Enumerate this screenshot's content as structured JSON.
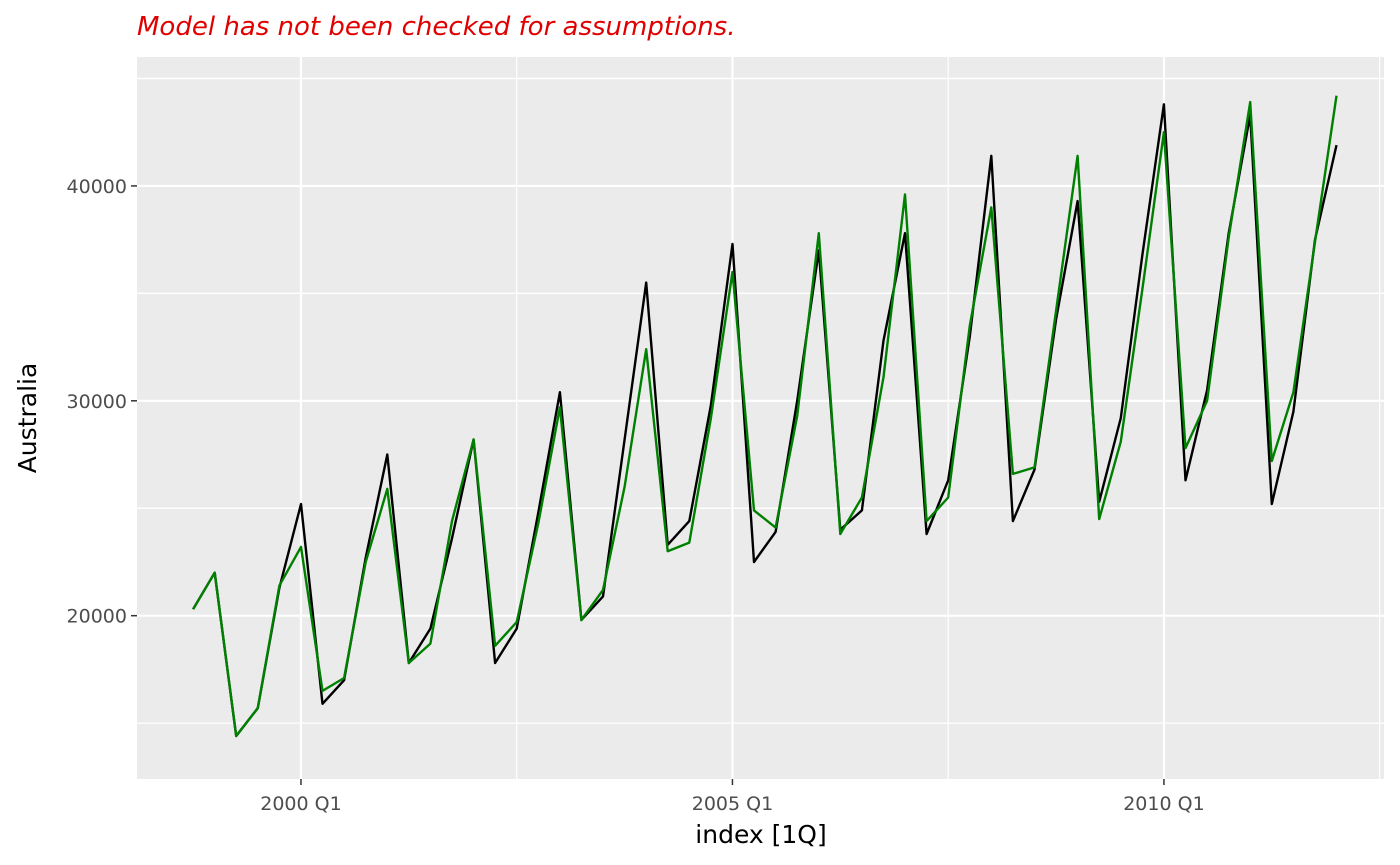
{
  "chart_data": {
    "type": "line",
    "title": "",
    "subtitle": "Model has not been checked for assumptions.",
    "xlabel": "index [1Q]",
    "ylabel": "Australia",
    "x_tick_labels": [
      "2000 Q1",
      "2005 Q1",
      "2010 Q1"
    ],
    "y_tick_labels": [
      "20000",
      "30000",
      "40000"
    ],
    "xlim": [
      1998.1,
      2012.55
    ],
    "ylim": [
      12400,
      46000
    ],
    "grid": true,
    "legend": "none",
    "x": [
      1998.75,
      1999.0,
      1999.25,
      1999.5,
      1999.75,
      2000.0,
      2000.25,
      2000.5,
      2000.75,
      2001.0,
      2001.25,
      2001.5,
      2001.75,
      2002.0,
      2002.25,
      2002.5,
      2002.75,
      2003.0,
      2003.25,
      2003.5,
      2003.75,
      2004.0,
      2004.25,
      2004.5,
      2004.75,
      2005.0,
      2005.25,
      2005.5,
      2005.75,
      2006.0,
      2006.25,
      2006.5,
      2006.75,
      2007.0,
      2007.25,
      2007.5,
      2007.75,
      2008.0,
      2008.25,
      2008.5,
      2008.75,
      2009.0,
      2009.25,
      2009.5,
      2009.75,
      2010.0,
      2010.25,
      2010.5,
      2010.75,
      2011.0,
      2011.25,
      2011.5,
      2011.75
    ],
    "series": [
      {
        "color": "#000000",
        "values": [
          20300,
          22000,
          14400,
          15700,
          21300,
          25200,
          15900,
          17000,
          22700,
          27500,
          17800,
          19400,
          23600,
          28200,
          17800,
          19400,
          24800,
          30400,
          19800,
          20900,
          28200,
          35500,
          23300,
          24400,
          29800,
          37300,
          22500,
          23900,
          30000,
          37000,
          24000,
          24900,
          32800,
          37800,
          23800,
          26300,
          33000,
          41400,
          24400,
          26800,
          33800,
          39300,
          25300,
          29200,
          36800,
          43800,
          26300,
          30500,
          37800,
          43300,
          25200,
          29500,
          37500
        ]
      },
      {
        "color": "#008000",
        "values": [
          20300,
          22000,
          14400,
          15700,
          21400,
          23200,
          16500,
          17100,
          22500,
          25900,
          17800,
          18700,
          24400,
          28200,
          18600,
          19700,
          24300,
          29700,
          19800,
          21200,
          26000,
          32400,
          23000,
          23400,
          29200,
          36000,
          24900,
          24100,
          29300,
          37800,
          23800,
          25500,
          31100,
          39600,
          24400,
          25500,
          33500,
          39000,
          26600,
          26900,
          34200,
          41400,
          24500,
          28100,
          35200,
          42500,
          27800,
          30000,
          37600,
          43900,
          27200,
          30400,
          37400
        ]
      }
    ],
    "last_point": {
      "x": 2012.0,
      "black": 41900,
      "green": 44200
    }
  }
}
